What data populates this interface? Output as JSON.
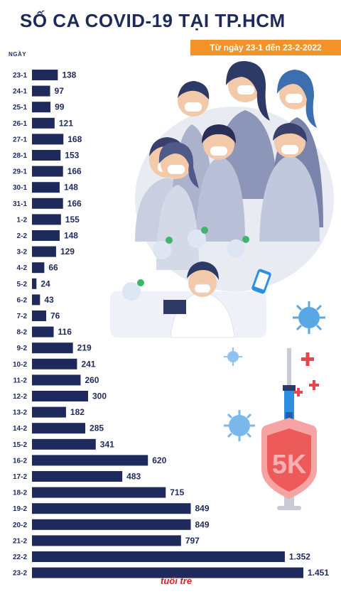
{
  "header": {
    "title": "SỐ CA COVID-19 TẠI TP.HCM",
    "subtitle": "Từ ngày 23-1 đến 23-2-2022"
  },
  "chart_data": {
    "type": "bar",
    "orientation": "horizontal",
    "title": "SỐ CA COVID-19 TẠI TP.HCM",
    "subtitle": "Từ ngày 23-1 đến 23-2-2022",
    "ylabel": "NGÀY",
    "xlabel": "",
    "xlim": [
      0,
      1451
    ],
    "grid": false,
    "bar_color": "#1e2a5c",
    "categories": [
      "23-1",
      "24-1",
      "25-1",
      "26-1",
      "27-1",
      "28-1",
      "29-1",
      "30-1",
      "31-1",
      "1-2",
      "2-2",
      "3-2",
      "4-2",
      "5-2",
      "6-2",
      "7-2",
      "8-2",
      "9-2",
      "10-2",
      "11-2",
      "12-2",
      "13-2",
      "14-2",
      "15-2",
      "16-2",
      "17-2",
      "18-2",
      "19-2",
      "20-2",
      "21-2",
      "22-2",
      "23-2"
    ],
    "values": [
      138,
      97,
      99,
      121,
      168,
      153,
      166,
      148,
      166,
      155,
      148,
      129,
      66,
      24,
      43,
      76,
      116,
      219,
      241,
      260,
      300,
      182,
      285,
      341,
      620,
      483,
      715,
      849,
      849,
      797,
      1352,
      1451
    ],
    "value_labels": [
      "138",
      "97",
      "99",
      "121",
      "168",
      "153",
      "166",
      "148",
      "166",
      "155",
      "148",
      "129",
      "66",
      "24",
      "43",
      "76",
      "116",
      "219",
      "241",
      "260",
      "300",
      "182",
      "285",
      "341",
      "620",
      "483",
      "715",
      "849",
      "849",
      "797",
      "1.352",
      "1.451"
    ]
  },
  "illustration": {
    "badge_text": "5K",
    "icons": [
      "masked-people-illustration",
      "doctor-icon",
      "virus-icon",
      "syringe-icon",
      "shield-icon",
      "check-icon",
      "smartphone-icon"
    ]
  },
  "footer": {
    "logo_text": "tuổi trẻ"
  },
  "colors": {
    "navy": "#1e2a5c",
    "orange": "#f39228",
    "shield_red": "#ec5a5a",
    "virus_blue": "#5aa7e6",
    "syringe_blue": "#2d8fe0",
    "plus_red": "#e64550"
  }
}
